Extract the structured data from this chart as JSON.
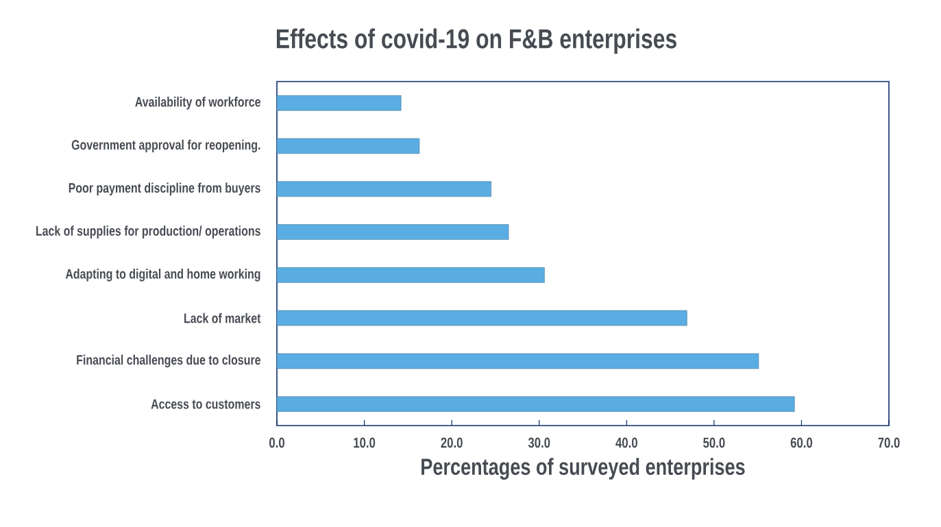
{
  "chart_data": {
    "type": "bar",
    "orientation": "horizontal",
    "title": "Effects of covid-19 on F&B enterprises",
    "xlabel": "Percentages of surveyed enterprises",
    "categories": [
      "Availability of workforce",
      "Government approval for reopening.",
      "Poor payment discipline from buyers",
      "Lack of supplies for production/ operations",
      "Adapting to digital and home working",
      "Lack of market",
      "Financial challenges due to closure",
      "Access to customers"
    ],
    "values": [
      14.2,
      16.3,
      24.5,
      26.5,
      30.6,
      46.9,
      55.1,
      59.2
    ],
    "color": "#5aade3",
    "xlim": [
      0,
      70
    ],
    "xticks": [
      {
        "value": 0,
        "label": "0.0"
      },
      {
        "value": 10,
        "label": "10.0"
      },
      {
        "value": 20,
        "label": "20.0"
      },
      {
        "value": 30,
        "label": "30.0"
      },
      {
        "value": 40,
        "label": "40.0"
      },
      {
        "value": 50,
        "label": "50.0"
      },
      {
        "value": 60,
        "label": "60.0"
      },
      {
        "value": 70,
        "label": "70.0"
      }
    ],
    "grid": false
  }
}
